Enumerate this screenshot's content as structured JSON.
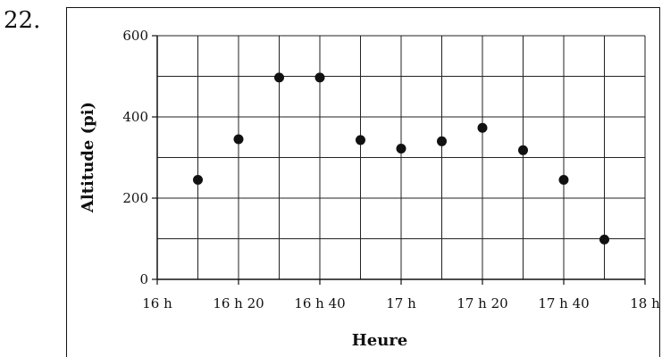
{
  "problem_number": "22.",
  "chart_data": {
    "type": "scatter",
    "xlabel": "Heure",
    "ylabel": "Altitude (pi)",
    "x_ticks": [
      "16 h",
      "16 h 20",
      "16 h 40",
      "17 h",
      "17 h 20",
      "17 h 40",
      "18 h"
    ],
    "y_ticks": [
      "0",
      "200",
      "400",
      "600"
    ],
    "xlim": [
      "16 h",
      "18 h"
    ],
    "ylim": [
      0,
      600
    ],
    "x_minor_step_minutes": 10,
    "y_minor_step": 100,
    "grid": true,
    "marker_color": "#111111",
    "points": [
      {
        "x": "16 h 10",
        "y": 245
      },
      {
        "x": "16 h 20",
        "y": 345
      },
      {
        "x": "16 h 30",
        "y": 497
      },
      {
        "x": "16 h 40",
        "y": 497
      },
      {
        "x": "16 h 50",
        "y": 343
      },
      {
        "x": "17 h",
        "y": 322
      },
      {
        "x": "17 h 10",
        "y": 340
      },
      {
        "x": "17 h 20",
        "y": 373
      },
      {
        "x": "17 h 30",
        "y": 318
      },
      {
        "x": "17 h 40",
        "y": 245
      },
      {
        "x": "17 h 50",
        "y": 98
      }
    ]
  }
}
